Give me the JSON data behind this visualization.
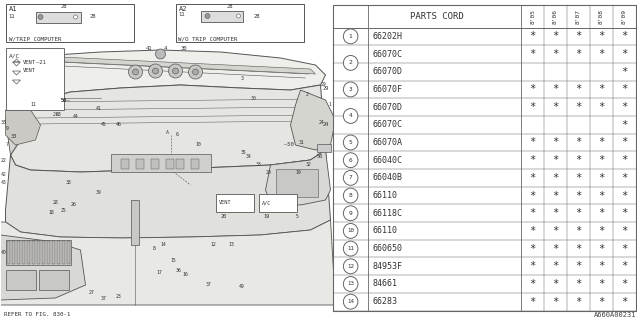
{
  "bg_color": "#ffffff",
  "col_header": "PARTS CORD",
  "year_cols": [
    "8'05",
    "8'06",
    "8'07",
    "8'08",
    "8'09"
  ],
  "rows": [
    {
      "num": 1,
      "parts": [
        "66202H"
      ],
      "stars": [
        [
          1,
          1,
          1,
          1,
          1
        ]
      ]
    },
    {
      "num": 2,
      "parts": [
        "66070C",
        "66070D"
      ],
      "stars": [
        [
          1,
          1,
          1,
          1,
          1
        ],
        [
          0,
          0,
          0,
          0,
          1
        ]
      ]
    },
    {
      "num": 3,
      "parts": [
        "66070F"
      ],
      "stars": [
        [
          1,
          1,
          1,
          1,
          1
        ]
      ]
    },
    {
      "num": 4,
      "parts": [
        "66070D",
        "66070C"
      ],
      "stars": [
        [
          1,
          1,
          1,
          1,
          1
        ],
        [
          0,
          0,
          0,
          0,
          1
        ]
      ]
    },
    {
      "num": 5,
      "parts": [
        "66070A"
      ],
      "stars": [
        [
          1,
          1,
          1,
          1,
          1
        ]
      ]
    },
    {
      "num": 6,
      "parts": [
        "66040C"
      ],
      "stars": [
        [
          1,
          1,
          1,
          1,
          1
        ]
      ]
    },
    {
      "num": 7,
      "parts": [
        "66040B"
      ],
      "stars": [
        [
          1,
          1,
          1,
          1,
          1
        ]
      ]
    },
    {
      "num": 8,
      "parts": [
        "66110"
      ],
      "stars": [
        [
          1,
          1,
          1,
          1,
          1
        ]
      ]
    },
    {
      "num": 9,
      "parts": [
        "66118C"
      ],
      "stars": [
        [
          1,
          1,
          1,
          1,
          1
        ]
      ]
    },
    {
      "num": 10,
      "parts": [
        "66110"
      ],
      "stars": [
        [
          1,
          1,
          1,
          1,
          1
        ]
      ]
    },
    {
      "num": 11,
      "parts": [
        "660650"
      ],
      "stars": [
        [
          1,
          1,
          1,
          1,
          1
        ]
      ]
    },
    {
      "num": 12,
      "parts": [
        "84953F"
      ],
      "stars": [
        [
          1,
          1,
          1,
          1,
          1
        ]
      ]
    },
    {
      "num": 13,
      "parts": [
        "84661"
      ],
      "stars": [
        [
          1,
          1,
          1,
          1,
          1
        ]
      ]
    },
    {
      "num": 14,
      "parts": [
        "66283"
      ],
      "stars": [
        [
          1,
          1,
          1,
          1,
          1
        ]
      ]
    }
  ],
  "ref_num": "A660A00231",
  "lc": "#666666",
  "tc": "#333333",
  "diag_lc": "#555555",
  "table_font_size": 6.0
}
